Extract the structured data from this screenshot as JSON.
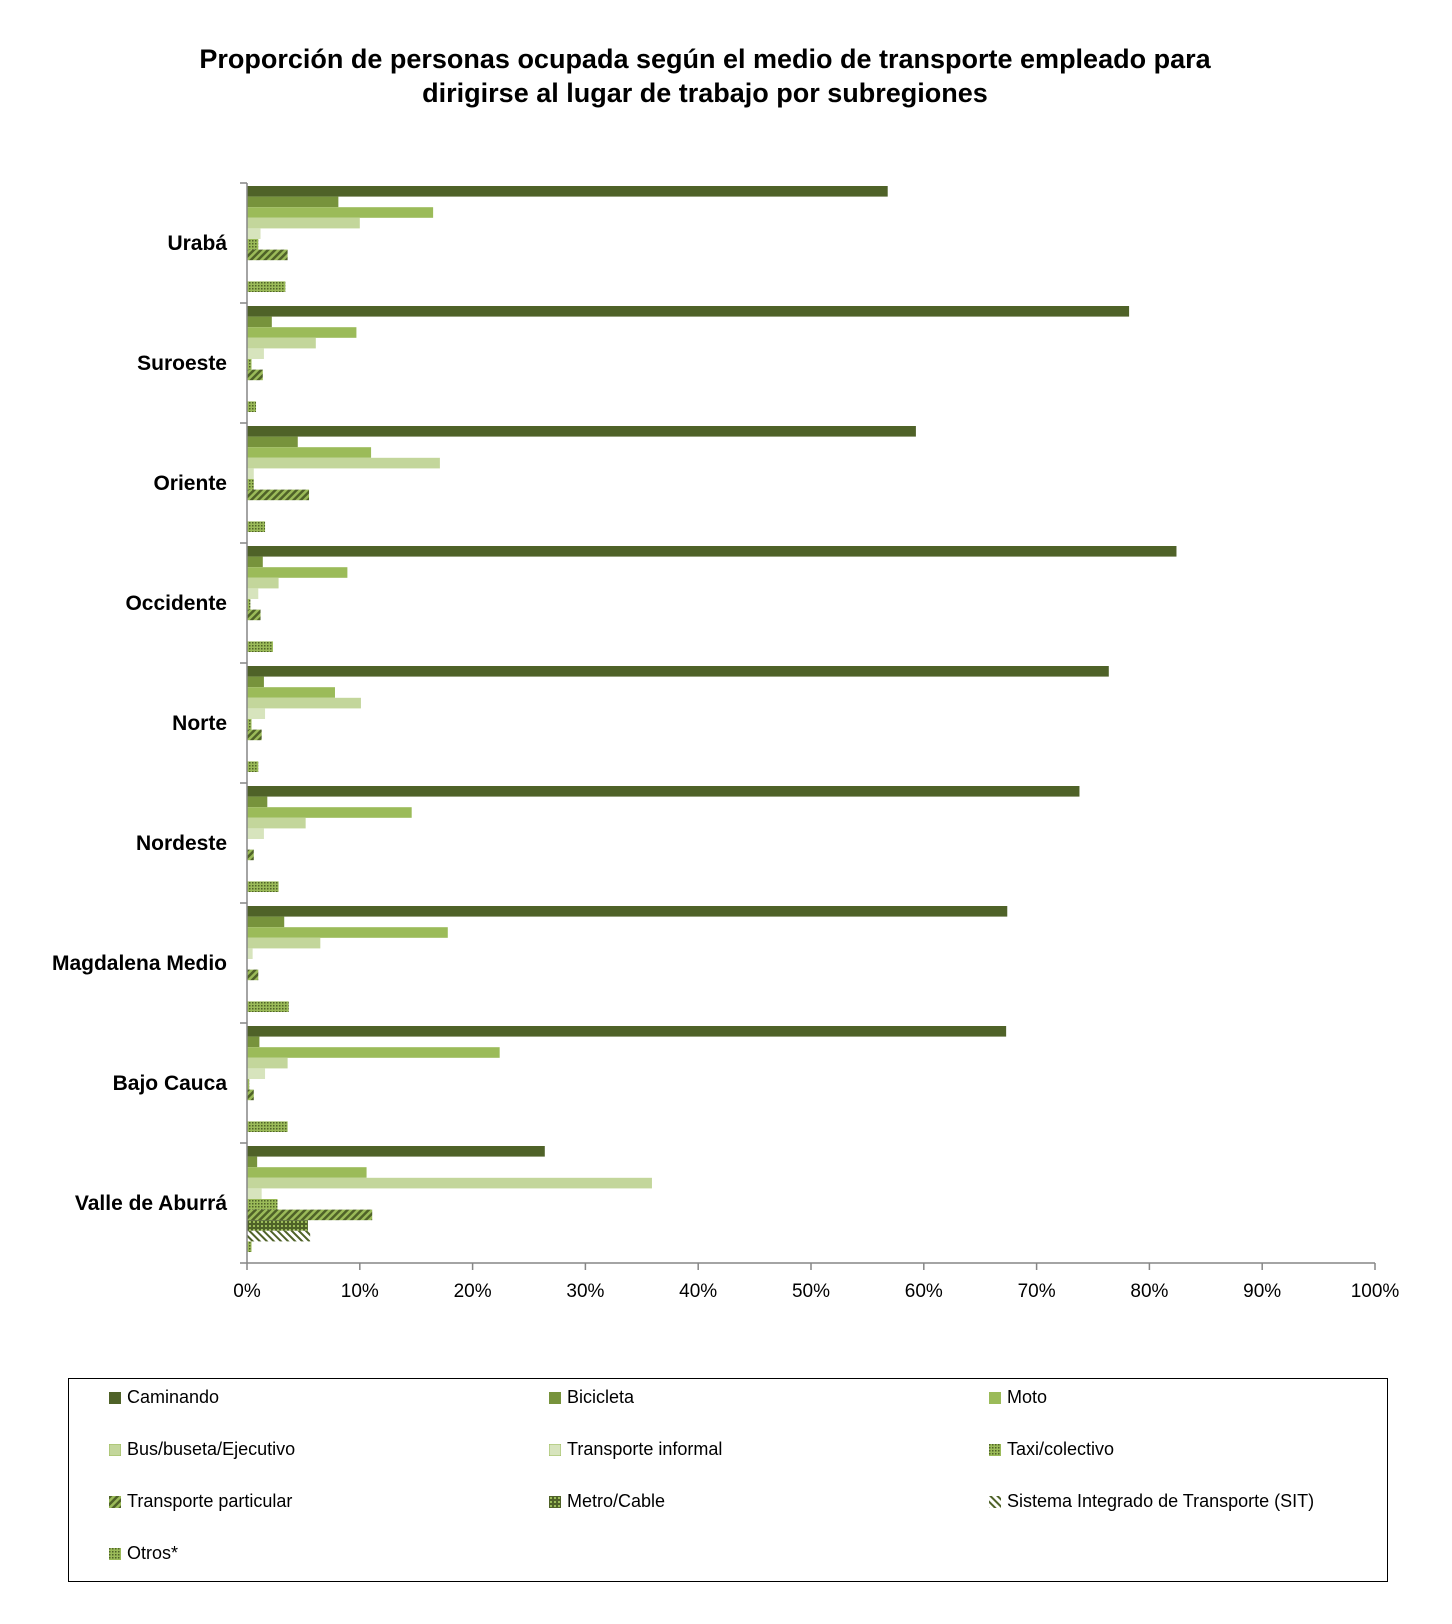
{
  "title_lines": [
    "Proporción de personas ocupada según el medio de transporte empleado para",
    "dirigirse al lugar de trabajo por subregiones"
  ],
  "chart_data": {
    "type": "bar",
    "orientation": "horizontal",
    "title": "Proporción de personas ocupada según el medio de transporte empleado para dirigirse al lugar de trabajo por subregiones",
    "categories": [
      "Urabá",
      "Suroeste",
      "Oriente",
      "Occidente",
      "Norte",
      "Nordeste",
      "Magdalena Medio",
      "Bajo Cauca",
      "Valle de Aburrá"
    ],
    "x_ticks": [
      "0%",
      "10%",
      "20%",
      "30%",
      "40%",
      "50%",
      "60%",
      "70%",
      "80%",
      "90%",
      "100%"
    ],
    "xlim": [
      0,
      100
    ],
    "grid": false,
    "legend_position": "bottom",
    "series": [
      {
        "name": "Caminando",
        "color": "#4f6228",
        "pattern": "solid",
        "values": [
          56.8,
          78.2,
          59.3,
          82.4,
          76.4,
          73.8,
          67.4,
          67.3,
          26.4
        ]
      },
      {
        "name": "Bicicleta",
        "color": "#77933c",
        "pattern": "solid",
        "values": [
          8.1,
          2.2,
          4.5,
          1.4,
          1.5,
          1.8,
          3.3,
          1.1,
          0.9
        ]
      },
      {
        "name": "Moto",
        "color": "#9bbb59",
        "pattern": "solid",
        "values": [
          16.5,
          9.7,
          11.0,
          8.9,
          7.8,
          14.6,
          17.8,
          22.4,
          10.6
        ]
      },
      {
        "name": "Bus/buseta/Ejecutivo",
        "color": "#c3d69b",
        "pattern": "solid",
        "values": [
          10.0,
          6.1,
          17.1,
          2.8,
          10.1,
          5.2,
          6.5,
          3.6,
          35.9
        ]
      },
      {
        "name": "Transporte informal",
        "color": "#d7e4bd",
        "pattern": "solid",
        "values": [
          1.2,
          1.5,
          0.6,
          1.0,
          1.6,
          1.5,
          0.5,
          1.6,
          1.3
        ]
      },
      {
        "name": "Taxi/colectivo",
        "color": "#77933c",
        "pattern": "dots",
        "values": [
          1.0,
          0.4,
          0.6,
          0.3,
          0.4,
          0.0,
          0.0,
          0.2,
          2.7
        ]
      },
      {
        "name": "Transporte particular",
        "color": "#4f6228",
        "pattern": "diag",
        "values": [
          3.6,
          1.4,
          5.5,
          1.2,
          1.3,
          0.6,
          1.0,
          0.6,
          11.1
        ]
      },
      {
        "name": "Metro/Cable",
        "color": "#4f6228",
        "pattern": "grid",
        "values": [
          0,
          0,
          0,
          0,
          0,
          0,
          0,
          0,
          5.4
        ]
      },
      {
        "name": "Sistema Integrado de Transporte (SIT)",
        "color": "#4f6228",
        "pattern": "diag-light",
        "values": [
          0,
          0,
          0,
          0,
          0,
          0,
          0,
          0,
          5.6
        ]
      },
      {
        "name": "Otros*",
        "color": "#77933c",
        "pattern": "dots",
        "values": [
          3.4,
          0.8,
          1.6,
          2.3,
          1.0,
          2.8,
          3.7,
          3.6,
          0.4
        ]
      }
    ]
  }
}
